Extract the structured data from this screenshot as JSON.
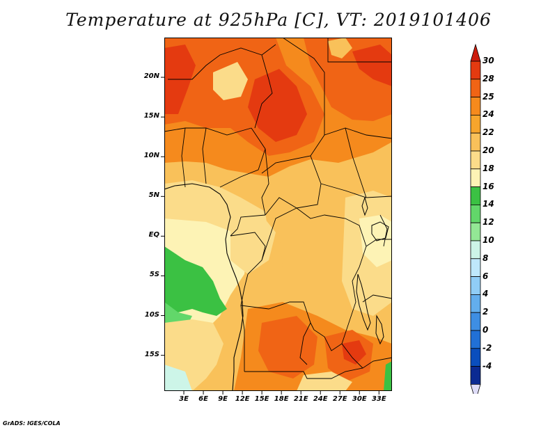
{
  "title": "Temperature at 925hPa [C], VT: 2019101406",
  "map": {
    "variable": "Temperature at 925hPa",
    "units": "C",
    "valid_time": "2019101406",
    "region": "Central Africa",
    "lat_ticks": [
      "20N",
      "15N",
      "10N",
      "5N",
      "EQ",
      "5S",
      "10S",
      "15S"
    ],
    "lon_ticks": [
      "3E",
      "6E",
      "9E",
      "12E",
      "15E",
      "18E",
      "21E",
      "24E",
      "27E",
      "30E",
      "33E"
    ],
    "lat_range": [
      -19.5,
      25
    ],
    "lon_range": [
      0,
      35
    ]
  },
  "colorbar": {
    "labels": [
      "30",
      "28",
      "25",
      "24",
      "22",
      "20",
      "18",
      "16",
      "14",
      "12",
      "10",
      "8",
      "6",
      "4",
      "2",
      "0",
      "-2",
      "-4"
    ],
    "colors": [
      "#e43a10",
      "#f06415",
      "#f58a1d",
      "#f7a52c",
      "#f9c15a",
      "#fbdc8a",
      "#fdf3b5",
      "#3bc143",
      "#62d76a",
      "#93e795",
      "#cdf5e8",
      "#bfe8fb",
      "#90cdf6",
      "#63aeed",
      "#3e8ee3",
      "#2170d6",
      "#0a4ebd",
      "#0b2a92"
    ],
    "top_color": "#cc1c0c",
    "bottom_color": "#dedcf7"
  },
  "credit": "GrADS: IGES/COLA"
}
